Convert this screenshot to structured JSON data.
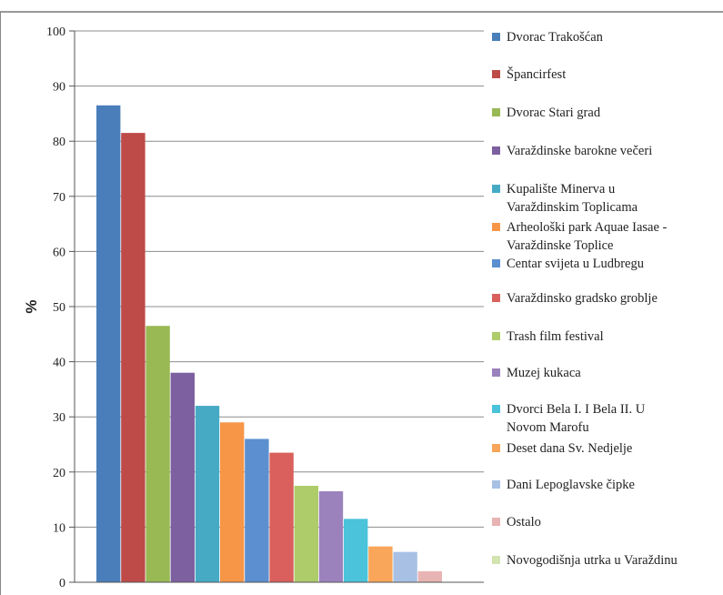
{
  "chart_data": {
    "type": "bar",
    "title": "",
    "xlabel": "",
    "ylabel": "%",
    "ylim": [
      0,
      100
    ],
    "yticks": [
      0,
      10,
      20,
      30,
      40,
      50,
      60,
      70,
      80,
      90,
      100
    ],
    "grid": true,
    "legend_position": "right",
    "series": [
      {
        "name": "Dvorac Trakošćan",
        "value": 86.5,
        "color": "#4a7ebb",
        "legend_lines": [
          "Dvorac Trakošćan"
        ]
      },
      {
        "name": "Špancirfest",
        "value": 81.5,
        "color": "#be4b48",
        "legend_lines": [
          "Špancirfest"
        ]
      },
      {
        "name": "Dvorac Stari grad",
        "value": 46.5,
        "color": "#98b954",
        "legend_lines": [
          "Dvorac Stari grad"
        ]
      },
      {
        "name": "Varaždinske barokne večeri",
        "value": 38,
        "color": "#7d60a0",
        "legend_lines": [
          "Varaždinske barokne večeri"
        ]
      },
      {
        "name": "Kupalište Minerva u Varaždinskim Toplicama",
        "value": 32,
        "color": "#46aac5",
        "legend_lines": [
          "Kupalište Minerva u",
          "Varaždinskim Toplicama"
        ]
      },
      {
        "name": "Arheološki park Aquae Iasae - Varaždinske Toplice",
        "value": 29,
        "color": "#f79646",
        "legend_lines": [
          "Arheološki park Aquae Iasae -",
          "Varaždinske Toplice"
        ]
      },
      {
        "name": "Centar svijeta u Ludbregu",
        "value": 26,
        "color": "#5b8fd0",
        "legend_lines": [
          "Centar svijeta u Ludbregu"
        ]
      },
      {
        "name": "Varaždinsko gradsko groblje",
        "value": 23.5,
        "color": "#d9605c",
        "legend_lines": [
          "Varaždinsko gradsko groblje"
        ]
      },
      {
        "name": "Trash film festival",
        "value": 17.5,
        "color": "#aecc6a",
        "legend_lines": [
          "Trash film festival"
        ]
      },
      {
        "name": "Muzej kukaca",
        "value": 16.5,
        "color": "#9b82bd",
        "legend_lines": [
          "Muzej kukaca"
        ]
      },
      {
        "name": "Dvorci Bela I. I Bela II. U Novom Marofu",
        "value": 11.5,
        "color": "#4bc3db",
        "legend_lines": [
          "Dvorci Bela I. I Bela II. U",
          "Novom Marofu"
        ]
      },
      {
        "name": "Deset dana Sv. Nedjelje",
        "value": 6.5,
        "color": "#f9a65a",
        "legend_lines": [
          "Deset dana Sv. Nedjelje"
        ]
      },
      {
        "name": "Dani Lepoglavske čipke",
        "value": 5.5,
        "color": "#a8c0e4",
        "legend_lines": [
          "Dani Lepoglavske čipke"
        ]
      },
      {
        "name": "Ostalo",
        "value": 2,
        "color": "#e8b4b3",
        "legend_lines": [
          "Ostalo"
        ]
      },
      {
        "name": "Novogodišnja utrka u Varaždinu",
        "value": 0,
        "color": "#d2e4b0",
        "legend_lines": [
          "Novogodišnja utrka u Varaždinu"
        ]
      }
    ]
  }
}
